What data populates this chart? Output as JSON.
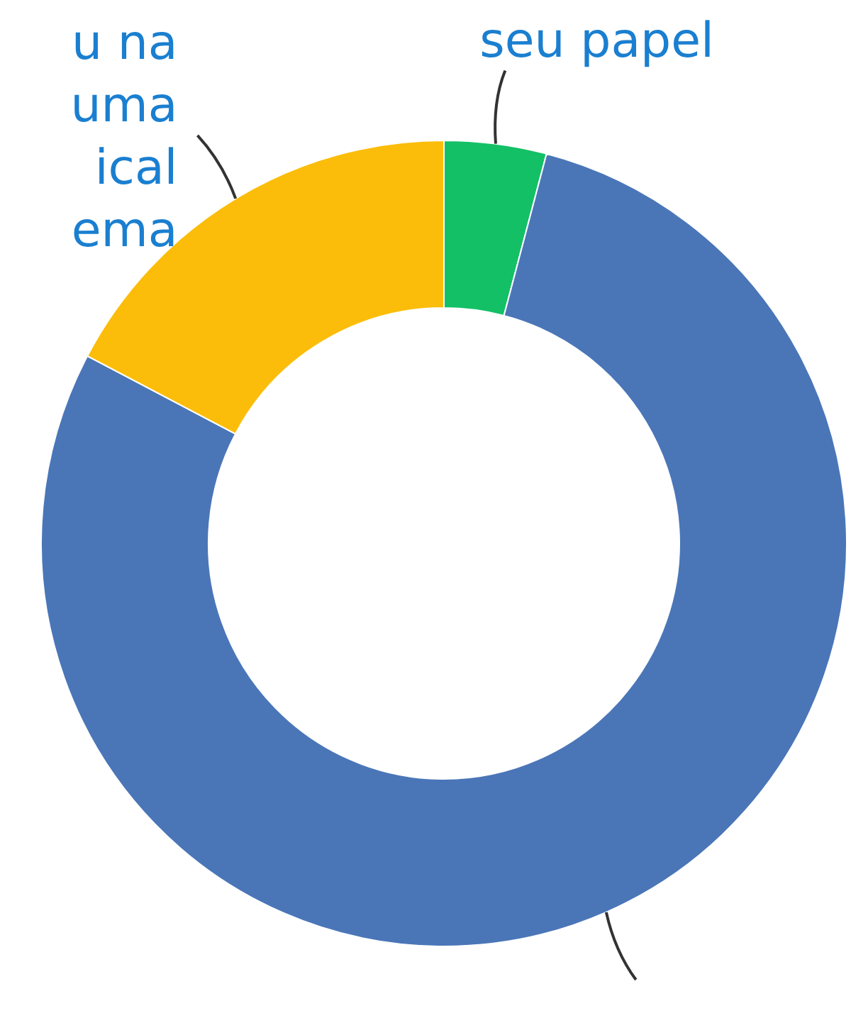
{
  "chart_data": {
    "type": "donut",
    "categories": [
      "seu papel",
      null,
      "u na\numa\nical\nema"
    ],
    "values": [
      4.1,
      78.6,
      17.3
    ],
    "colors": [
      "#13c066",
      "#4a76b8",
      "#fbbd0a"
    ],
    "legend": false
  }
}
